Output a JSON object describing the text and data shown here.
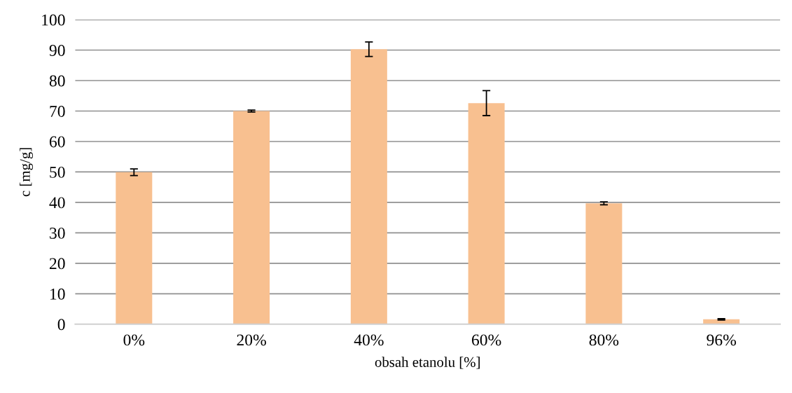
{
  "chart_data": {
    "type": "bar",
    "xlabel": "obsah etanolu [%]",
    "ylabel": "c [mg/g]",
    "categories": [
      "0%",
      "20%",
      "40%",
      "60%",
      "80%",
      "96%"
    ],
    "values": [
      49.9,
      70.0,
      90.3,
      72.6,
      39.7,
      1.6
    ],
    "errors": [
      1.1,
      0.3,
      2.4,
      4.1,
      0.5,
      0.2
    ],
    "color": "#f8c090",
    "ylim": [
      0,
      100
    ],
    "yticks": [
      0,
      10,
      20,
      30,
      40,
      50,
      60,
      70,
      80,
      90,
      100
    ],
    "grid": "y"
  }
}
